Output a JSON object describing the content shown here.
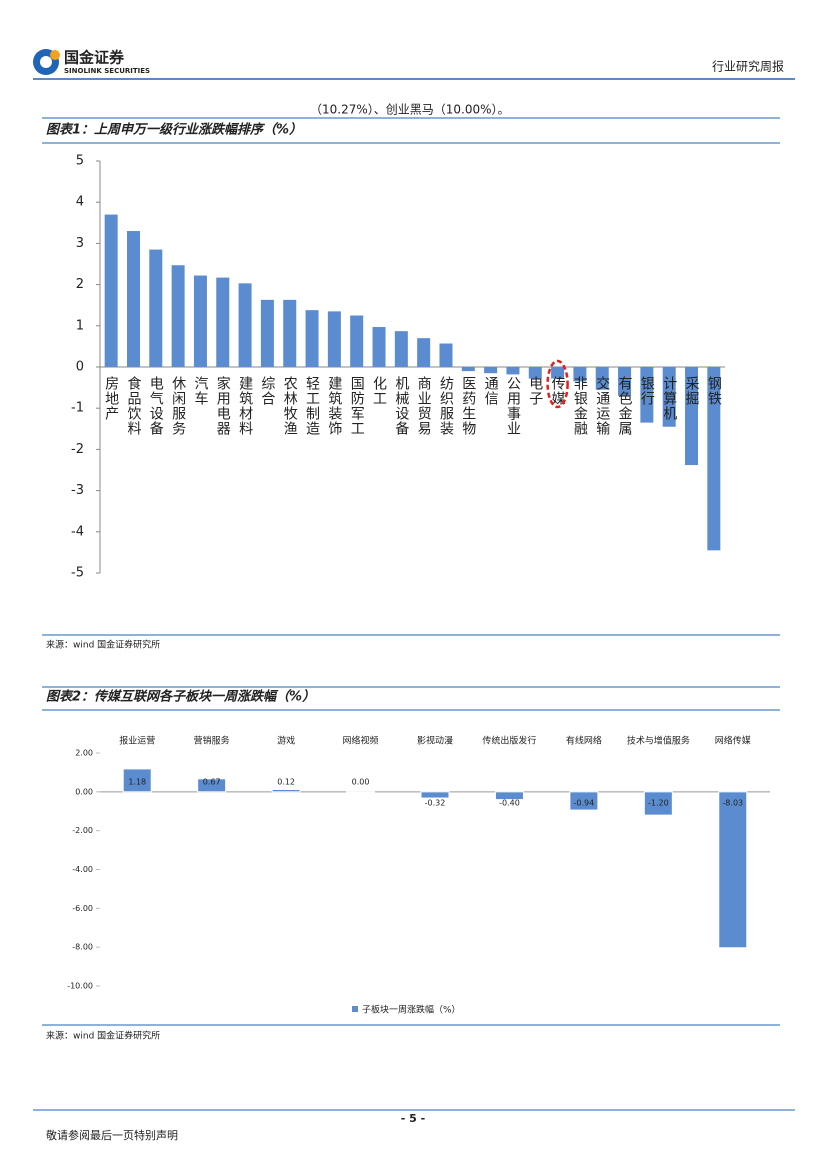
{
  "header": {
    "logo_cn": "国金证券",
    "logo_en": "SINOLINK SECURITIES",
    "report_type": "行业研究周报"
  },
  "intro_line": "（10.27%）、创业黑马（10.00%）。",
  "chart_data": [
    {
      "type": "bar",
      "title": "图表1：上周申万一级行业涨跌幅排序（%）",
      "categories": [
        "房地产",
        "食品饮料",
        "电气设备",
        "休闲服务",
        "汽车",
        "家用电器",
        "建筑材料",
        "综合",
        "农林牧渔",
        "轻工制造",
        "建筑装饰",
        "国防军工",
        "化工",
        "机械设备",
        "商业贸易",
        "纺织服装",
        "医药生物",
        "通信",
        "公用事业",
        "电子",
        "传媒",
        "非银金融",
        "交通运输",
        "有色金属",
        "银行",
        "计算机",
        "采掘",
        "钢铁"
      ],
      "values": [
        3.7,
        3.3,
        2.85,
        2.47,
        2.22,
        2.17,
        2.03,
        1.63,
        1.63,
        1.38,
        1.35,
        1.25,
        0.97,
        0.87,
        0.7,
        0.57,
        -0.1,
        -0.15,
        -0.18,
        -0.28,
        -0.28,
        -0.35,
        -0.55,
        -0.7,
        -1.35,
        -1.45,
        -2.38,
        -4.45
      ],
      "color": "#5b8ccf",
      "ylim": [
        -5,
        5
      ],
      "yticks": [
        -5,
        -4,
        -3,
        -2,
        -1,
        0,
        1,
        2,
        3,
        4,
        5
      ],
      "source": "来源：wind 国金证券研究所"
    },
    {
      "type": "bar",
      "title": "图表2：传媒互联网各子板块一周涨跌幅（%）",
      "categories": [
        "报业运营",
        "营销服务",
        "游戏",
        "网络视频",
        "影视动漫",
        "传统出版发行",
        "有线网络",
        "技术与增值服务",
        "网络传媒"
      ],
      "series": [
        {
          "name": "子板块一周涨跌幅（%）",
          "color": "#5b8ccf",
          "values": [
            1.18,
            0.67,
            0.12,
            0.0,
            -0.32,
            -0.4,
            -0.94,
            -1.2,
            -8.03
          ],
          "value_labels": [
            "1.18",
            "0.67",
            "0.12",
            "0.00",
            "-0.32",
            "-0.40",
            "-0.94",
            "-1.20",
            "-8.03"
          ]
        }
      ],
      "ylim": [
        -10,
        2
      ],
      "yticks": [
        {
          "value": -10,
          "label": "-10.00"
        },
        {
          "value": -8,
          "label": "-8.00"
        },
        {
          "value": -6,
          "label": "-6.00"
        },
        {
          "value": -4,
          "label": "-4.00"
        },
        {
          "value": -2,
          "label": "-2.00"
        },
        {
          "value": 0,
          "label": "0.00"
        },
        {
          "value": 2,
          "label": "2.00"
        }
      ],
      "source": "来源：wind 国金证券研究所"
    }
  ],
  "footer": {
    "page": "- 5 -",
    "disclaimer": "敬请参阅最后一页特别声明"
  }
}
